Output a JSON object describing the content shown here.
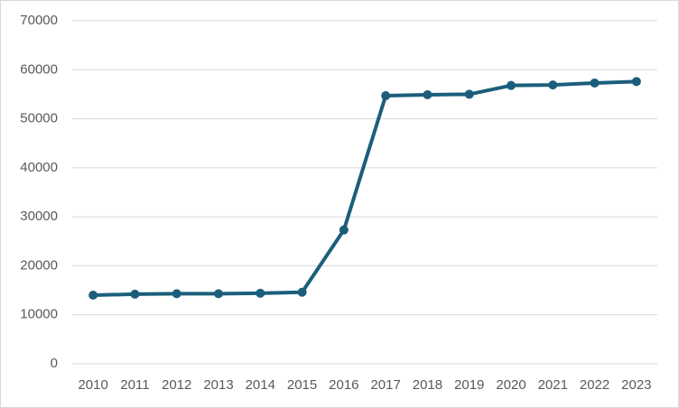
{
  "chart_data": {
    "type": "line",
    "categories": [
      "2010",
      "2011",
      "2012",
      "2013",
      "2014",
      "2015",
      "2016",
      "2017",
      "2018",
      "2019",
      "2020",
      "2021",
      "2022",
      "2023"
    ],
    "values": [
      14000,
      14200,
      14300,
      14300,
      14400,
      14600,
      27300,
      54700,
      54900,
      55000,
      56800,
      56900,
      57300,
      57600
    ],
    "color": "#1b5e7b",
    "ylim": [
      0,
      70000
    ],
    "yticks": [
      0,
      10000,
      20000,
      30000,
      40000,
      50000,
      60000,
      70000
    ],
    "grid": true
  }
}
